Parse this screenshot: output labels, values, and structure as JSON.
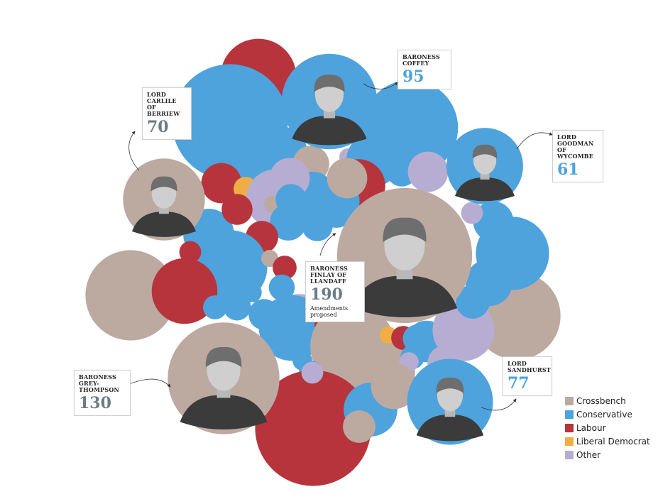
{
  "colors": {
    "Crossbench": "#bcaaa1",
    "Conservative": "#4ea3dc",
    "Labour": "#b8343c",
    "Liberal Democrat": "#efae45",
    "Other": "#b7add2"
  },
  "chart_data": {
    "type": "bubble",
    "title": "",
    "value_label": "Amendments proposed",
    "legend": [
      "Crossbench",
      "Conservative",
      "Labour",
      "Liberal Democrat",
      "Other"
    ],
    "legend_position": "bottom-right",
    "highlighted": [
      {
        "name": "BARONESS COFFEY",
        "party": "Conservative",
        "value": 95,
        "number_color": "#4ea3dc"
      },
      {
        "name": "LORD CARLILE OF BERRIEW",
        "party": "Crossbench",
        "value": 70,
        "number_color": "#6b7d87"
      },
      {
        "name": "LORD GOODMAN OF WYCOMBE",
        "party": "Conservative",
        "value": 61,
        "number_color": "#4ea3dc"
      },
      {
        "name": "BARONESS FINLAY OF LLANDAFF",
        "party": "Crossbench",
        "value": 190,
        "number_color": "#6b7d87",
        "subtitle": "Amendments proposed"
      },
      {
        "name": "BARONESS GREY-THOMPSON",
        "party": "Crossbench",
        "value": 130,
        "number_color": "#6b7d87"
      },
      {
        "name": "LORD SANDHURST",
        "party": "Conservative",
        "value": 77,
        "number_color": "#4ea3dc"
      }
    ],
    "bubbles": [
      {
        "party": "Labour",
        "value": 60
      },
      {
        "party": "Conservative",
        "value": 140
      },
      {
        "party": "Conservative",
        "value": 95
      },
      {
        "party": "Conservative",
        "value": 25
      },
      {
        "party": "Crossbench",
        "value": 14
      },
      {
        "party": "Other",
        "value": 3
      },
      {
        "party": "Conservative",
        "value": 30
      },
      {
        "party": "Conservative",
        "value": 10
      },
      {
        "party": "Other",
        "value": 17
      },
      {
        "party": "Conservative",
        "value": 10
      },
      {
        "party": "Labour",
        "value": 17
      },
      {
        "party": "Liberal Democrat",
        "value": 6
      },
      {
        "party": "Other",
        "value": 36
      },
      {
        "party": "Conservative",
        "value": 23
      },
      {
        "party": "Labour",
        "value": 6
      },
      {
        "party": "Labour",
        "value": 30
      },
      {
        "party": "Conservative",
        "value": 10
      },
      {
        "party": "Conservative",
        "value": 4
      },
      {
        "party": "Conservative",
        "value": 12
      },
      {
        "party": "Crossbench",
        "value": 3
      },
      {
        "party": "Conservative",
        "value": 14
      },
      {
        "party": "Labour",
        "value": 11
      },
      {
        "party": "Conservative",
        "value": 56
      },
      {
        "party": "Conservative",
        "value": 27
      },
      {
        "party": "Labour",
        "value": 10
      },
      {
        "party": "Crossbench",
        "value": 3
      },
      {
        "party": "Labour",
        "value": 5
      },
      {
        "party": "Labour",
        "value": 6
      },
      {
        "party": "Conservative",
        "value": 7
      },
      {
        "party": "Crossbench",
        "value": 85
      },
      {
        "party": "Labour",
        "value": 45
      },
      {
        "party": "Conservative",
        "value": 4
      },
      {
        "party": "Conservative",
        "value": 8
      },
      {
        "party": "Conservative",
        "value": 6
      },
      {
        "party": "Conservative",
        "value": 10
      },
      {
        "party": "Other",
        "value": 30
      },
      {
        "party": "Conservative",
        "value": 45
      },
      {
        "party": "Labour",
        "value": 3
      },
      {
        "party": "Crossbench",
        "value": 75
      },
      {
        "party": "Crossbench",
        "value": 30
      },
      {
        "party": "Liberal Democrat",
        "value": 3
      },
      {
        "party": "Labour",
        "value": 6
      },
      {
        "party": "Conservative",
        "value": 8
      },
      {
        "party": "Conservative",
        "value": 6
      },
      {
        "party": "Conservative",
        "value": 18
      },
      {
        "party": "Other",
        "value": 4
      },
      {
        "party": "Other",
        "value": 14
      },
      {
        "party": "Conservative",
        "value": 4
      },
      {
        "party": "Conservative",
        "value": 6
      },
      {
        "party": "Other",
        "value": 3
      },
      {
        "party": "Labour",
        "value": 140
      },
      {
        "party": "Conservative",
        "value": 30
      },
      {
        "party": "Crossbench",
        "value": 11
      },
      {
        "party": "Crossbench",
        "value": 22
      },
      {
        "party": "Crossbench",
        "value": 80
      },
      {
        "party": "Other",
        "value": 40
      },
      {
        "party": "Conservative",
        "value": 12
      },
      {
        "party": "Conservative",
        "value": 56
      },
      {
        "party": "Conservative",
        "value": 17
      },
      {
        "party": "Other",
        "value": 5
      },
      {
        "party": "Crossbench",
        "value": 3
      },
      {
        "party": "Conservative",
        "value": 23
      },
      {
        "party": "Conservative",
        "value": 25
      },
      {
        "party": "Crossbench",
        "value": 17
      },
      {
        "party": "Other",
        "value": 17
      },
      {
        "party": "Conservative",
        "value": 10
      },
      {
        "party": "Other",
        "value": 5
      }
    ]
  }
}
